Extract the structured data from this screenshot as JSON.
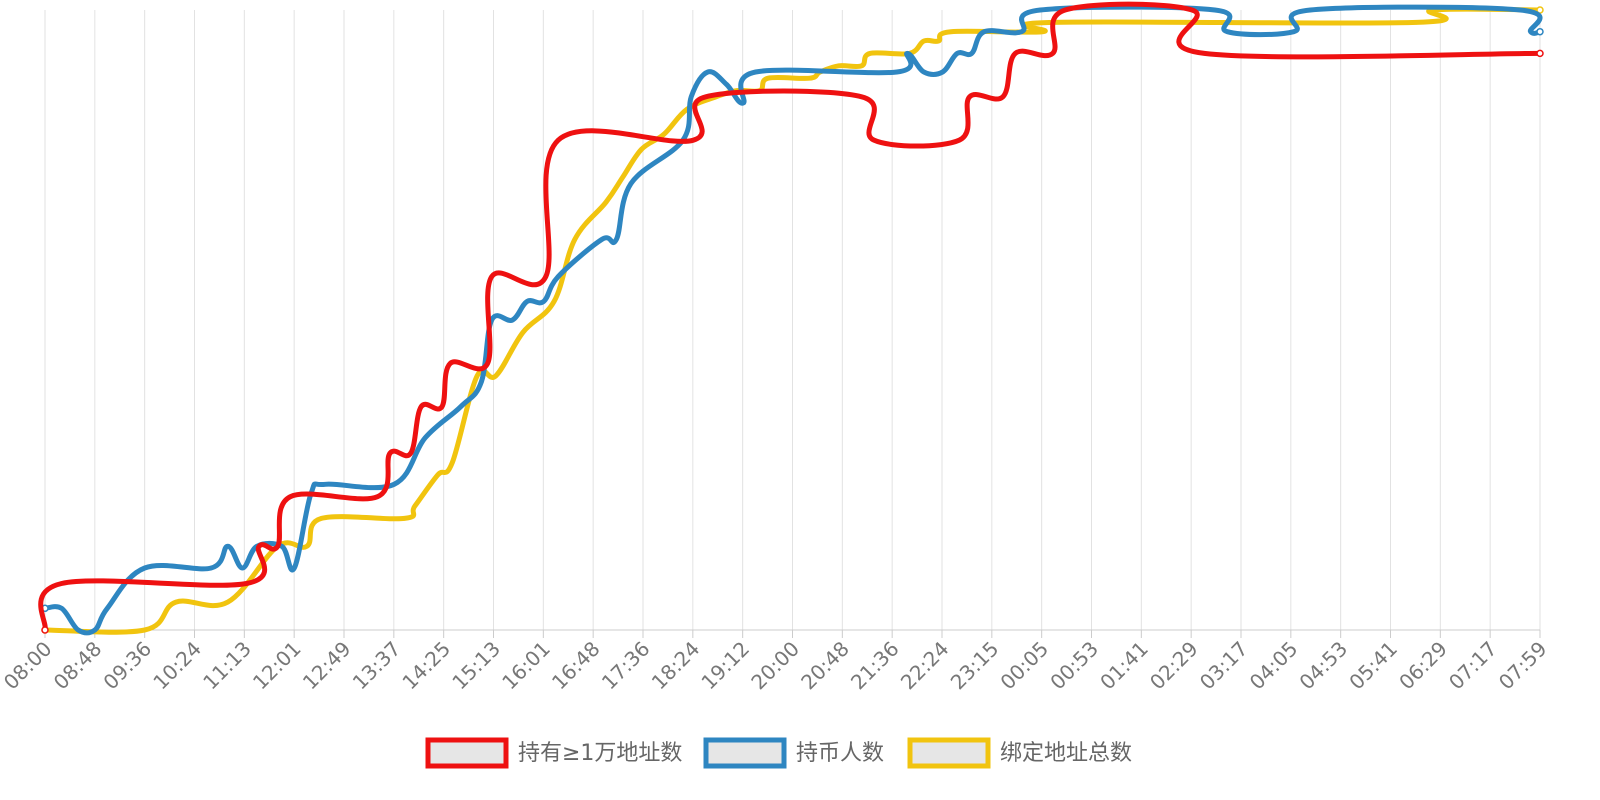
{
  "chart_data": {
    "type": "line",
    "title": "",
    "xlabel": "",
    "ylabel": "",
    "grid": true,
    "legend_position": "bottom",
    "x_ticks": [
      "08:00",
      "08:48",
      "09:36",
      "10:24",
      "11:13",
      "12:01",
      "12:49",
      "13:37",
      "14:25",
      "15:13",
      "16:01",
      "16:48",
      "17:36",
      "18:24",
      "19:12",
      "20:00",
      "20:48",
      "21:36",
      "22:24",
      "23:15",
      "00:05",
      "00:53",
      "01:41",
      "02:29",
      "03:17",
      "04:05",
      "04:53",
      "05:41",
      "06:29",
      "07:17",
      "07:59"
    ],
    "x_range_minutes": [
      0,
      1439
    ],
    "y_range": [
      0,
      100
    ],
    "series": [
      {
        "name": "持有≥1万地址数",
        "color": "#ee1111",
        "points": [
          [
            0,
            0
          ],
          [
            16,
            7.5
          ],
          [
            194,
            7.5
          ],
          [
            206,
            13.5
          ],
          [
            224,
            13.5
          ],
          [
            236,
            21.5
          ],
          [
            320,
            21.5
          ],
          [
            332,
            28.5
          ],
          [
            352,
            28.5
          ],
          [
            362,
            36
          ],
          [
            382,
            36
          ],
          [
            390,
            43
          ],
          [
            426,
            43
          ],
          [
            430,
            57
          ],
          [
            482,
            57
          ],
          [
            494,
            79
          ],
          [
            624,
            79
          ],
          [
            636,
            86
          ],
          [
            786,
            86
          ],
          [
            798,
            79
          ],
          [
            880,
            79
          ],
          [
            890,
            86
          ],
          [
            922,
            86
          ],
          [
            934,
            93
          ],
          [
            970,
            93
          ],
          [
            982,
            100
          ],
          [
            1104,
            100
          ],
          [
            1116,
            93
          ],
          [
            1439,
            93
          ]
        ]
      },
      {
        "name": "持币人数",
        "color": "#2e86c1",
        "points": [
          [
            0,
            3.5
          ],
          [
            16,
            3.5
          ],
          [
            32,
            0
          ],
          [
            48,
            0
          ],
          [
            60,
            3.5
          ],
          [
            96,
            10
          ],
          [
            160,
            10
          ],
          [
            176,
            13.5
          ],
          [
            190,
            10
          ],
          [
            204,
            13.5
          ],
          [
            228,
            13.5
          ],
          [
            240,
            10
          ],
          [
            256,
            22
          ],
          [
            270,
            23.5
          ],
          [
            336,
            23.5
          ],
          [
            366,
            31
          ],
          [
            400,
            36
          ],
          [
            420,
            40
          ],
          [
            430,
            50
          ],
          [
            450,
            50
          ],
          [
            464,
            53
          ],
          [
            480,
            53
          ],
          [
            494,
            57
          ],
          [
            536,
            63
          ],
          [
            550,
            63
          ],
          [
            564,
            72
          ],
          [
            614,
            79
          ],
          [
            622,
            86
          ],
          [
            638,
            90
          ],
          [
            656,
            88
          ],
          [
            672,
            85
          ],
          [
            684,
            90
          ],
          [
            820,
            90
          ],
          [
            830,
            93
          ],
          [
            846,
            90
          ],
          [
            864,
            90
          ],
          [
            878,
            93
          ],
          [
            892,
            93
          ],
          [
            904,
            96.5
          ],
          [
            940,
            96.5
          ],
          [
            958,
            100
          ],
          [
            1126,
            100
          ],
          [
            1138,
            96.5
          ],
          [
            1202,
            96.5
          ],
          [
            1218,
            100
          ],
          [
            1420,
            100
          ],
          [
            1430,
            96.5
          ],
          [
            1439,
            96.5
          ]
        ]
      },
      {
        "name": "绑定地址总数",
        "color": "#f1c40f",
        "points": [
          [
            0,
            0
          ],
          [
            96,
            0
          ],
          [
            126,
            4.5
          ],
          [
            176,
            4.5
          ],
          [
            224,
            13.5
          ],
          [
            252,
            13.5
          ],
          [
            266,
            18
          ],
          [
            346,
            18
          ],
          [
            356,
            20
          ],
          [
            378,
            25
          ],
          [
            392,
            27
          ],
          [
            416,
            41
          ],
          [
            434,
            41
          ],
          [
            460,
            48
          ],
          [
            490,
            53
          ],
          [
            510,
            63
          ],
          [
            540,
            69
          ],
          [
            556,
            73
          ],
          [
            574,
            77.5
          ],
          [
            596,
            80
          ],
          [
            618,
            84
          ],
          [
            646,
            86
          ],
          [
            666,
            87
          ],
          [
            688,
            87
          ],
          [
            696,
            89
          ],
          [
            736,
            89
          ],
          [
            746,
            90
          ],
          [
            764,
            91
          ],
          [
            786,
            91
          ],
          [
            794,
            93
          ],
          [
            832,
            93
          ],
          [
            846,
            95
          ],
          [
            860,
            95
          ],
          [
            872,
            96.5
          ],
          [
            960,
            96.5
          ],
          [
            970,
            98
          ],
          [
            1320,
            98
          ],
          [
            1336,
            100
          ],
          [
            1439,
            100
          ]
        ]
      }
    ]
  }
}
